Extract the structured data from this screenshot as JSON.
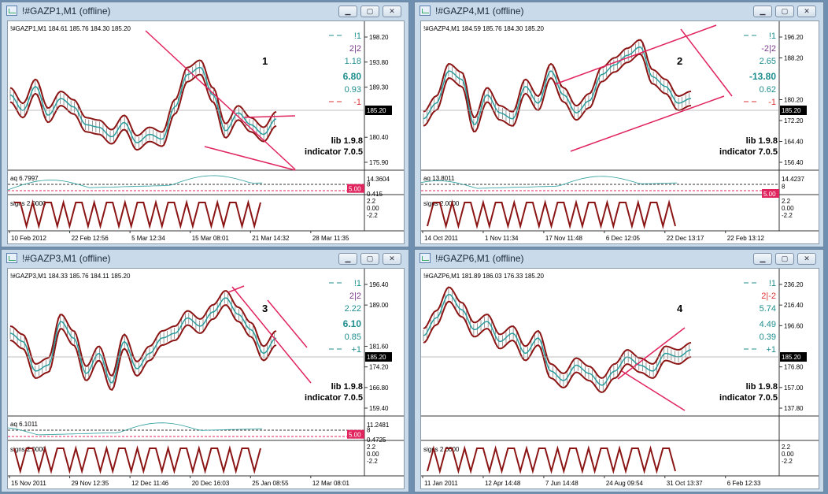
{
  "windows": [
    {
      "id": "w1",
      "title": "!#GAZP1,M1 (offline)",
      "ohlc": "!#GAZP1,M1  184.61 185.76 184.30 185.20",
      "number": "1",
      "prices": [
        "198.20",
        "193.80",
        "189.30",
        "185.20",
        "180.40",
        "175.90"
      ],
      "right_labels": [
        {
          "t": "!1",
          "c": "#1e8d8d",
          "b": false
        },
        {
          "t": "2|2",
          "c": "#7a3a8a",
          "b": false
        },
        {
          "t": "1.18",
          "c": "#1e8d8d",
          "b": false
        },
        {
          "t": "6.80",
          "c": "#1e8d8d",
          "b": true
        },
        {
          "t": "0.93",
          "c": "#1e8d8d",
          "b": false
        },
        {
          "t": "-1",
          "c": "#d33",
          "b": false
        }
      ],
      "aq_label": "aq 6.7997",
      "aq_scale": [
        "14.3604",
        "8",
        "5.00",
        "0.415"
      ],
      "signs_label": "signs 2.0000",
      "signs_scale": [
        "2.2",
        "0.00",
        "-2.2"
      ],
      "dates": [
        "10 Feb 2012",
        "22 Feb 12:56",
        "5 Mar 12:34",
        "15 Mar 08:01",
        "21 Mar 14:32",
        "28 Mar 11:35"
      ]
    },
    {
      "id": "w2",
      "title": "!#GAZP4,M1 (offline)",
      "ohlc": "!#GAZP4,M1  184.59 185.76 184.30 185.20",
      "number": "2",
      "prices": [
        "196.20",
        "188.20",
        "185.20",
        "180.20",
        "172.20",
        "164.40",
        "156.40"
      ],
      "right_labels": [
        {
          "t": "!1",
          "c": "#1e8d8d",
          "b": false
        },
        {
          "t": "-2|2",
          "c": "#7a3a8a",
          "b": false
        },
        {
          "t": "2.65",
          "c": "#1e8d8d",
          "b": false
        },
        {
          "t": "-13.80",
          "c": "#1e8d8d",
          "b": true
        },
        {
          "t": "0.62",
          "c": "#1e8d8d",
          "b": false
        },
        {
          "t": "-1",
          "c": "#d33",
          "b": false
        }
      ],
      "aq_label": "aq 13.8011",
      "aq_scale": [
        "14.4237",
        "8",
        "5.00"
      ],
      "signs_label": "signs 2.0000",
      "signs_scale": [
        "2.2",
        "0.00",
        "-2.2"
      ],
      "dates": [
        "14 Oct 2011",
        "1 Nov 11:34",
        "17 Nov 11:48",
        "6 Dec 12:05",
        "22 Dec 13:17",
        "22 Feb 13:12"
      ]
    },
    {
      "id": "w3",
      "title": "!#GAZP3,M1 (offline)",
      "ohlc": "!#GAZP3,M1  184.33 185.76 184.11 185.20",
      "number": "3",
      "prices": [
        "196.40",
        "189.00",
        "185.20",
        "181.60",
        "174.20",
        "166.80",
        "159.40"
      ],
      "right_labels": [
        {
          "t": "!1",
          "c": "#1e8d8d",
          "b": false
        },
        {
          "t": "2|2",
          "c": "#7a3a8a",
          "b": false
        },
        {
          "t": "2.22",
          "c": "#1e8d8d",
          "b": false
        },
        {
          "t": "6.10",
          "c": "#1e8d8d",
          "b": true
        },
        {
          "t": "0.85",
          "c": "#1e8d8d",
          "b": false
        },
        {
          "t": "+1",
          "c": "#1e8d8d",
          "b": false
        }
      ],
      "aq_label": "aq 6.1011",
      "aq_scale": [
        "11.2481",
        "8",
        "5.00",
        "0.4725"
      ],
      "signs_label": "signs 2.0000",
      "signs_scale": [
        "2.2",
        "0.00",
        "-2.2"
      ],
      "dates": [
        "15 Nov 2011",
        "29 Nov 12:35",
        "12 Dec 11:46",
        "20 Dec 16:03",
        "25 Jan 08:55",
        "12 Mar 08:01"
      ]
    },
    {
      "id": "w4",
      "title": "!#GAZP6,M1 (offline)",
      "ohlc": "!#GAZP6,M1  181.89 186.03 176.33 185.20",
      "number": "4",
      "prices": [
        "236.20",
        "216.40",
        "196.60",
        "185.20",
        "176.80",
        "157.00",
        "137.80"
      ],
      "right_labels": [
        {
          "t": "!1",
          "c": "#1e8d8d",
          "b": false
        },
        {
          "t": "2|-2",
          "c": "#d33",
          "b": false
        },
        {
          "t": "5.74",
          "c": "#1e8d8d",
          "b": false
        },
        {
          "t": "4.49",
          "c": "#1e8d8d",
          "b": false
        },
        {
          "t": "0.39",
          "c": "#1e8d8d",
          "b": false
        },
        {
          "t": "+1",
          "c": "#1e8d8d",
          "b": false
        }
      ],
      "aq_label": "",
      "aq_scale": [],
      "signs_label": "signs 2.0000",
      "signs_scale": [
        "2.2",
        "0.00",
        "-2.2"
      ],
      "dates": [
        "11 Jan 2011",
        "12 Apr 14:48",
        "7 Jun 14:48",
        "24 Aug 09:54",
        "31 Oct 13:37",
        "6 Feb 12:33"
      ]
    }
  ],
  "lib_label": "lib 1.9.8",
  "indicator_label": "indicator 7.0.5",
  "price_tag": "185.20",
  "level_tag": "5.00",
  "button_icons": [
    "minimize-icon",
    "maximize-icon",
    "close-icon"
  ],
  "colors": {
    "price": "#8b1414",
    "mid": "#2a9d9d",
    "channel": "#e0245e",
    "level": "#e0245e"
  }
}
